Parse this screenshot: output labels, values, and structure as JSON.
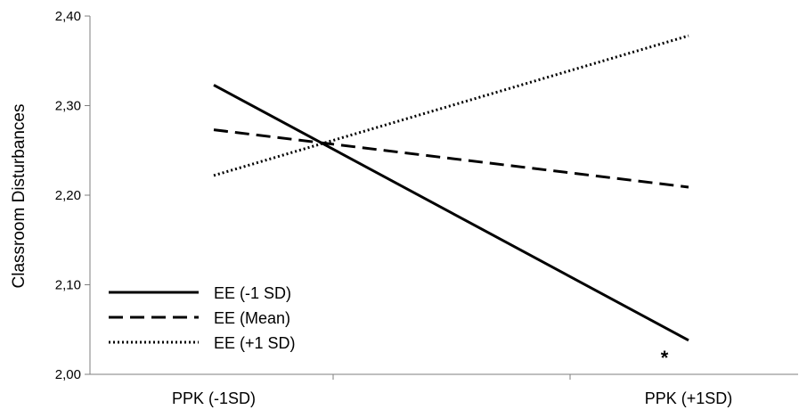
{
  "chart_data": {
    "type": "line",
    "title": "",
    "xlabel": "",
    "ylabel": "Classroom Disturbances",
    "categories": [
      "PPK (-1SD)",
      "PPK (+1SD)"
    ],
    "y_ticks": [
      "2,00",
      "2,10",
      "2,20",
      "2,30",
      "2,40"
    ],
    "ylim": [
      2.0,
      2.4
    ],
    "grid": false,
    "legend_position": "bottom-left",
    "series": [
      {
        "name": "EE (-1 SD)",
        "values": [
          2.323,
          2.038
        ],
        "style": "solid"
      },
      {
        "name": "EE (Mean)",
        "values": [
          2.273,
          2.209
        ],
        "style": "dashed"
      },
      {
        "name": "EE (+1 SD)",
        "values": [
          2.222,
          2.378
        ],
        "style": "dotted"
      }
    ],
    "annotations": [
      {
        "text": "*",
        "category_index": 1,
        "y": 2.017
      }
    ]
  }
}
